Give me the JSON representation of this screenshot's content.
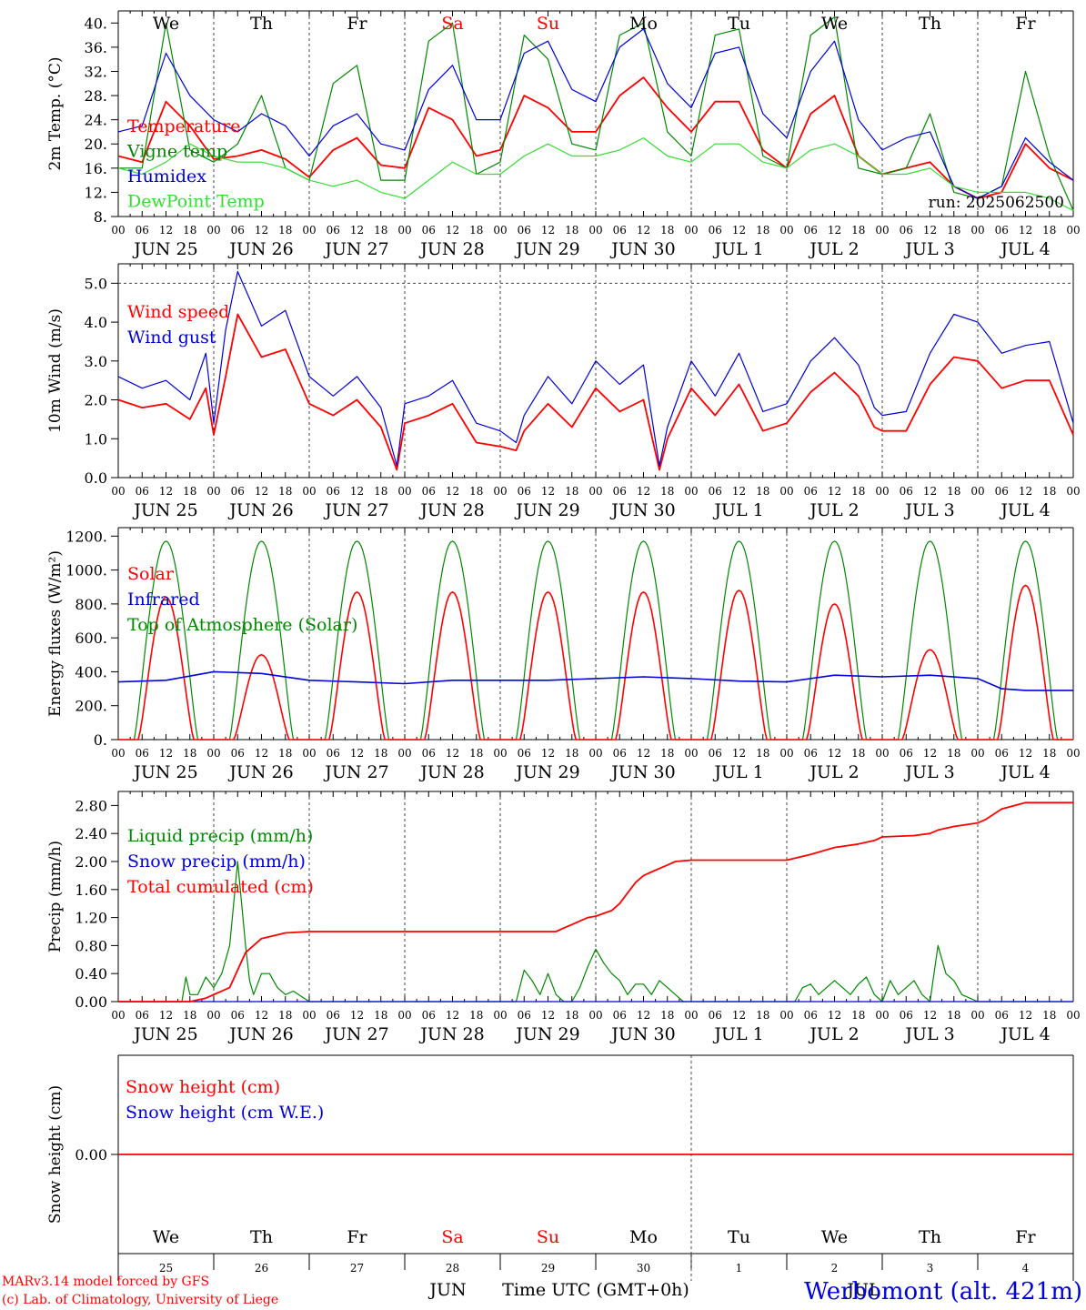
{
  "colors": {
    "red": "#ff0000",
    "green": "#008800",
    "lightgreen": "#33dd33",
    "blue": "#0000dd",
    "black": "#000000",
    "grid": "#555555"
  },
  "hour_tick_labels": [
    "00",
    "06",
    "12",
    "18"
  ],
  "day_tick_labels": [
    "JUN 25",
    "JUN 26",
    "JUN 27",
    "JUN 28",
    "JUN 29",
    "JUN 30",
    "JUL  1",
    "JUL  2",
    "JUL  3",
    "JUL  4"
  ],
  "weekdays": [
    {
      "label": "We",
      "color": "#000000"
    },
    {
      "label": "Th",
      "color": "#000000"
    },
    {
      "label": "Fr",
      "color": "#000000"
    },
    {
      "label": "Sa",
      "color": "#ff0000"
    },
    {
      "label": "Su",
      "color": "#ff0000"
    },
    {
      "label": "Mo",
      "color": "#000000"
    },
    {
      "label": "Tu",
      "color": "#000000"
    },
    {
      "label": "We",
      "color": "#000000"
    },
    {
      "label": "Th",
      "color": "#000000"
    },
    {
      "label": "Fr",
      "color": "#000000"
    }
  ],
  "bottom_day_numbers": [
    "25",
    "26",
    "27",
    "28",
    "29",
    "30",
    "1",
    "2",
    "3",
    "4"
  ],
  "bottom_month_labels": [
    "JUN",
    "JUL"
  ],
  "x_axis_title": "Time UTC (GMT+0h)",
  "footer": {
    "model_line": "MARv3.14 model forced by GFS",
    "credit_line": "(c) Lab. of Climatology, University of Liege",
    "station": "Werbomont (alt. 421m)"
  },
  "chart_data": [
    {
      "type": "line",
      "ylabel": "2m Temp. (°C)",
      "ylim": [
        8,
        42
      ],
      "yticks": [
        8,
        12,
        16,
        20,
        24,
        28,
        32,
        36,
        40
      ],
      "ytick_labels": [
        "8.",
        "12.",
        "16.",
        "20.",
        "24.",
        "28.",
        "32.",
        "36.",
        "40."
      ],
      "annotation": "run: 2025062500",
      "series": [
        {
          "name": "Temperature",
          "color": "#ff0000",
          "x": [
            0,
            6,
            12,
            18,
            24,
            30,
            36,
            42,
            48,
            54,
            60,
            66,
            72,
            78,
            84,
            90,
            96,
            102,
            108,
            114,
            120,
            126,
            132,
            138,
            144,
            150,
            156,
            162,
            168,
            174,
            180,
            186,
            192,
            198,
            204,
            210,
            216,
            222,
            228,
            234,
            240
          ],
          "y": [
            18,
            17,
            27,
            23,
            17.5,
            18,
            19,
            17.5,
            14.5,
            19,
            21,
            16.5,
            16,
            26,
            24,
            18,
            19,
            28,
            26,
            22,
            22,
            28,
            31,
            26,
            22,
            27,
            27,
            19,
            16,
            25,
            28,
            18,
            15,
            16,
            17,
            13,
            11,
            12,
            20,
            16,
            14
          ]
        },
        {
          "name": "Vigne temp",
          "color": "#008800",
          "x": [
            0,
            6,
            12,
            18,
            24,
            30,
            36,
            42,
            48,
            54,
            60,
            66,
            72,
            78,
            84,
            90,
            96,
            102,
            108,
            114,
            120,
            126,
            132,
            138,
            144,
            150,
            156,
            162,
            168,
            174,
            180,
            186,
            192,
            198,
            204,
            210,
            216,
            222,
            228,
            234,
            240
          ],
          "y": [
            16,
            16,
            40,
            19,
            17,
            20,
            28,
            16,
            14,
            30,
            33,
            14,
            14,
            37,
            40,
            15,
            17,
            38,
            34,
            20,
            19,
            38,
            40,
            22,
            18,
            38,
            39,
            18,
            16,
            38,
            41,
            16,
            15,
            16,
            25,
            12,
            11,
            13,
            32,
            18,
            9
          ]
        },
        {
          "name": "Humidex",
          "color": "#0000dd",
          "x": [
            0,
            6,
            12,
            18,
            24,
            30,
            36,
            42,
            48,
            54,
            60,
            66,
            72,
            78,
            84,
            90,
            96,
            102,
            108,
            114,
            120,
            126,
            132,
            138,
            144,
            150,
            156,
            162,
            168,
            174,
            180,
            186,
            192,
            198,
            204,
            210,
            216,
            222,
            228,
            234,
            240
          ],
          "y": [
            22,
            23,
            35,
            28,
            24,
            22,
            25,
            23,
            18,
            23,
            25,
            20,
            19,
            29,
            33,
            24,
            24,
            35,
            37,
            29,
            27,
            36,
            39,
            30,
            26,
            35,
            36,
            25,
            21,
            32,
            37,
            24,
            19,
            21,
            22,
            13,
            11,
            13,
            21,
            17,
            14
          ]
        },
        {
          "name": "DewPoint Temp",
          "color": "#33dd33",
          "x": [
            0,
            6,
            12,
            18,
            24,
            30,
            36,
            42,
            48,
            54,
            60,
            66,
            72,
            78,
            84,
            90,
            96,
            102,
            108,
            114,
            120,
            126,
            132,
            138,
            144,
            150,
            156,
            162,
            168,
            174,
            180,
            186,
            192,
            198,
            204,
            210,
            216,
            222,
            228,
            234,
            240
          ],
          "y": [
            16,
            15,
            17,
            20,
            18,
            17,
            17,
            16,
            14,
            13,
            14,
            12,
            11,
            14,
            17,
            15,
            15,
            18,
            20,
            18,
            18,
            19,
            21,
            18,
            17,
            20,
            20,
            17,
            16,
            19,
            20,
            18,
            15,
            15,
            16,
            13,
            12,
            12,
            12,
            11,
            9
          ]
        }
      ]
    },
    {
      "type": "line",
      "ylabel": "10m Wind (m/s)",
      "ylim": [
        0,
        5.5
      ],
      "yticks": [
        0,
        1,
        2,
        3,
        4,
        5
      ],
      "ytick_labels": [
        "0.0",
        "1.0",
        "2.0",
        "3.0",
        "4.0",
        "5.0"
      ],
      "reference_line": 5.0,
      "series": [
        {
          "name": "Wind speed",
          "color": "#ff0000",
          "x": [
            0,
            6,
            12,
            18,
            22,
            24,
            27,
            30,
            36,
            42,
            48,
            54,
            60,
            66,
            70,
            72,
            78,
            84,
            90,
            96,
            100,
            102,
            108,
            114,
            120,
            126,
            132,
            136,
            138,
            144,
            150,
            156,
            162,
            168,
            174,
            180,
            186,
            190,
            192,
            198,
            204,
            210,
            216,
            222,
            228,
            234,
            240
          ],
          "y": [
            2.0,
            1.8,
            1.9,
            1.5,
            2.3,
            1.1,
            2.6,
            4.2,
            3.1,
            3.3,
            1.9,
            1.6,
            2.0,
            1.3,
            0.2,
            1.4,
            1.6,
            1.9,
            0.9,
            0.8,
            0.7,
            1.2,
            1.9,
            1.3,
            2.3,
            1.7,
            2.0,
            0.2,
            1.0,
            2.3,
            1.6,
            2.4,
            1.2,
            1.4,
            2.2,
            2.7,
            2.1,
            1.3,
            1.2,
            1.2,
            2.4,
            3.1,
            3.0,
            2.3,
            2.5,
            2.5,
            1.1
          ]
        },
        {
          "name": "Wind gust",
          "color": "#0000dd",
          "x": [
            0,
            6,
            12,
            18,
            22,
            24,
            27,
            30,
            36,
            42,
            48,
            54,
            60,
            66,
            70,
            72,
            78,
            84,
            90,
            96,
            100,
            102,
            108,
            114,
            120,
            126,
            132,
            136,
            138,
            144,
            150,
            156,
            162,
            168,
            174,
            180,
            186,
            190,
            192,
            198,
            204,
            210,
            216,
            222,
            228,
            234,
            240
          ],
          "y": [
            2.6,
            2.3,
            2.5,
            2.0,
            3.2,
            1.4,
            3.8,
            5.3,
            3.9,
            4.3,
            2.6,
            2.1,
            2.6,
            1.8,
            0.3,
            1.9,
            2.1,
            2.5,
            1.4,
            1.2,
            0.9,
            1.6,
            2.6,
            1.9,
            3.0,
            2.4,
            2.9,
            0.3,
            1.3,
            3.0,
            2.1,
            3.2,
            1.7,
            1.9,
            3.0,
            3.6,
            2.9,
            1.8,
            1.6,
            1.7,
            3.2,
            4.2,
            4.0,
            3.2,
            3.4,
            3.5,
            1.4
          ]
        }
      ]
    },
    {
      "type": "line",
      "ylabel": "Energy fluxes (W/m²)",
      "ylim": [
        0,
        1250
      ],
      "yticks": [
        0,
        200,
        400,
        600,
        800,
        1000,
        1200
      ],
      "ytick_labels": [
        "0.",
        "200.",
        "400.",
        "600.",
        "800.",
        "1000.",
        "1200."
      ],
      "daily_peak_solar": [
        840,
        500,
        870,
        870,
        870,
        870,
        880,
        800,
        530,
        910
      ],
      "top_of_atmosphere_peak": 1170,
      "infrared_level": 360,
      "series": [
        {
          "name": "Solar",
          "color": "#ff0000"
        },
        {
          "name": "Infrared",
          "color": "#0000dd",
          "x": [
            0,
            12,
            24,
            36,
            48,
            60,
            72,
            84,
            96,
            108,
            120,
            132,
            144,
            156,
            168,
            180,
            192,
            204,
            216,
            222,
            228,
            240
          ],
          "y": [
            340,
            350,
            400,
            390,
            350,
            340,
            330,
            350,
            350,
            350,
            360,
            370,
            360,
            345,
            340,
            380,
            370,
            380,
            360,
            300,
            290,
            290
          ]
        },
        {
          "name": "Top of Atmosphere (Solar)",
          "color": "#008800"
        }
      ]
    },
    {
      "type": "line",
      "ylabel": "Precip (mm/h)",
      "ylim": [
        0,
        3.0
      ],
      "yticks": [
        0,
        0.4,
        0.8,
        1.2,
        1.6,
        2.0,
        2.4,
        2.8
      ],
      "ytick_labels": [
        "0.00",
        "0.40",
        "0.80",
        "1.20",
        "1.60",
        "2.00",
        "2.40",
        "2.80"
      ],
      "series": [
        {
          "name": "Liquid precip (mm/h)",
          "color": "#008800",
          "x": [
            0,
            16,
            17,
            18,
            20,
            22,
            24,
            26,
            28,
            30,
            32,
            33,
            34,
            36,
            38,
            40,
            42,
            44,
            48,
            100,
            102,
            104,
            106,
            108,
            110,
            112,
            114,
            116,
            118,
            120,
            122,
            124,
            126,
            128,
            130,
            132,
            134,
            136,
            138,
            140,
            142,
            144,
            146,
            148,
            150,
            170,
            172,
            174,
            176,
            178,
            180,
            182,
            184,
            186,
            188,
            190,
            192,
            194,
            196,
            198,
            200,
            202,
            204,
            206,
            208,
            210,
            212,
            214,
            216,
            218,
            220,
            222,
            240
          ],
          "y": [
            0,
            0,
            0.35,
            0.1,
            0.1,
            0.35,
            0.2,
            0.4,
            0.8,
            2.0,
            0.8,
            0.3,
            0.1,
            0.4,
            0.4,
            0.2,
            0.1,
            0.15,
            0,
            0,
            0.45,
            0.3,
            0.1,
            0.4,
            0.1,
            0,
            0,
            0.2,
            0.5,
            0.75,
            0.55,
            0.4,
            0.3,
            0.1,
            0.25,
            0.25,
            0.1,
            0.3,
            0.2,
            0.1,
            0,
            0,
            0,
            0,
            0,
            0,
            0.2,
            0.25,
            0.1,
            0.2,
            0.3,
            0.2,
            0.1,
            0.25,
            0.35,
            0.1,
            0,
            0.3,
            0.1,
            0.2,
            0.3,
            0.1,
            0,
            0.8,
            0.4,
            0.3,
            0.1,
            0.05,
            0,
            0,
            0,
            0,
            0
          ]
        },
        {
          "name": "Snow precip (mm/h)",
          "color": "#0000dd",
          "x": [
            0,
            240
          ],
          "y": [
            0,
            0
          ]
        },
        {
          "name": "Total cumulated (cm)",
          "color": "#ff0000",
          "x": [
            0,
            18,
            22,
            24,
            28,
            32,
            36,
            42,
            48,
            60,
            72,
            84,
            96,
            110,
            112,
            114,
            118,
            120,
            124,
            126,
            128,
            130,
            132,
            134,
            136,
            138,
            140,
            144,
            150,
            156,
            168,
            174,
            180,
            186,
            190,
            192,
            200,
            204,
            206,
            210,
            216,
            218,
            222,
            228,
            240
          ],
          "y": [
            0,
            0,
            0.05,
            0.1,
            0.2,
            0.7,
            0.9,
            0.98,
            1.0,
            1.0,
            1.0,
            1.0,
            1.0,
            1.0,
            1.05,
            1.1,
            1.2,
            1.22,
            1.3,
            1.4,
            1.55,
            1.7,
            1.8,
            1.85,
            1.9,
            1.95,
            2.0,
            2.02,
            2.02,
            2.02,
            2.02,
            2.1,
            2.2,
            2.25,
            2.3,
            2.35,
            2.37,
            2.4,
            2.45,
            2.5,
            2.55,
            2.6,
            2.75,
            2.84,
            2.84
          ]
        }
      ]
    },
    {
      "type": "line",
      "ylabel": "Snow height (cm)",
      "yticks": [
        0
      ],
      "ytick_labels": [
        "0.00"
      ],
      "series": [
        {
          "name": "Snow height (cm)",
          "color": "#ff0000",
          "x": [
            0,
            240
          ],
          "y": [
            0,
            0
          ]
        },
        {
          "name": "Snow height (cm W.E.)",
          "color": "#0000dd"
        }
      ]
    }
  ]
}
